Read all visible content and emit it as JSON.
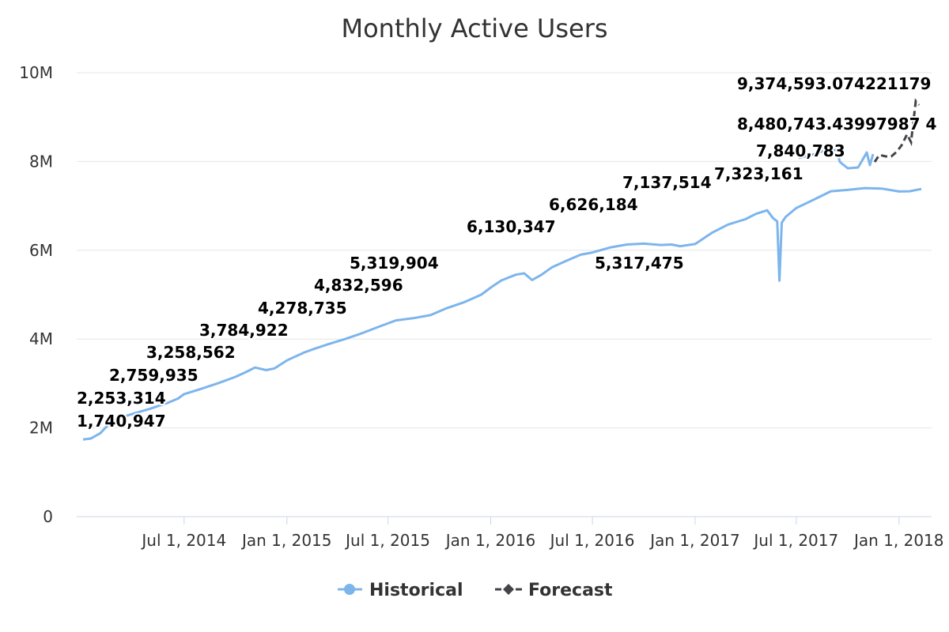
{
  "chart_data": {
    "type": "line",
    "title": "Monthly Active Users",
    "y_axis": {
      "min": 0,
      "max": 10000000,
      "ticks": [
        0,
        2000000,
        4000000,
        6000000,
        8000000,
        10000000
      ],
      "tick_labels": [
        "0",
        "2M",
        "4M",
        "6M",
        "8M",
        "10M"
      ],
      "grid": true
    },
    "x_axis": {
      "min": "2014-01-01",
      "max": "2018-02-10",
      "ticks": [
        "2014-07-01",
        "2015-01-01",
        "2015-07-01",
        "2016-01-01",
        "2016-07-01",
        "2017-01-01",
        "2017-07-01",
        "2018-01-01"
      ],
      "tick_labels": [
        "Jul 1, 2014",
        "Jan 1, 2015",
        "Jul 1, 2015",
        "Jan 1, 2016",
        "Jul 1, 2016",
        "Jan 1, 2017",
        "Jul 1, 2017",
        "Jan 1, 2018"
      ]
    },
    "legend_position": "bottom-center",
    "series": [
      {
        "name": "Historical",
        "color": "#7cb5ec",
        "points": [
          [
            "2014-01-01",
            1740947
          ],
          [
            "2014-01-15",
            1760000
          ],
          [
            "2014-02-01",
            1880000
          ],
          [
            "2014-02-15",
            2070000
          ],
          [
            "2014-03-01",
            2200000
          ],
          [
            "2014-03-15",
            2253314
          ],
          [
            "2014-04-01",
            2320000
          ],
          [
            "2014-05-01",
            2430000
          ],
          [
            "2014-06-01",
            2560000
          ],
          [
            "2014-06-20",
            2660000
          ],
          [
            "2014-07-01",
            2759935
          ],
          [
            "2014-08-01",
            2880000
          ],
          [
            "2014-09-01",
            3010000
          ],
          [
            "2014-10-01",
            3150000
          ],
          [
            "2014-10-20",
            3258562
          ],
          [
            "2014-11-05",
            3360000
          ],
          [
            "2014-11-25",
            3300000
          ],
          [
            "2014-12-10",
            3340000
          ],
          [
            "2015-01-01",
            3520000
          ],
          [
            "2015-02-01",
            3700000
          ],
          [
            "2015-02-20",
            3784922
          ],
          [
            "2015-03-15",
            3880000
          ],
          [
            "2015-04-15",
            4000000
          ],
          [
            "2015-05-15",
            4130000
          ],
          [
            "2015-06-15",
            4278735
          ],
          [
            "2015-07-15",
            4420000
          ],
          [
            "2015-08-15",
            4470000
          ],
          [
            "2015-09-15",
            4540000
          ],
          [
            "2015-10-15",
            4700000
          ],
          [
            "2015-11-15",
            4832596
          ],
          [
            "2015-12-15",
            5000000
          ],
          [
            "2016-01-01",
            5160000
          ],
          [
            "2016-01-20",
            5319904
          ],
          [
            "2016-02-15",
            5450000
          ],
          [
            "2016-03-01",
            5480000
          ],
          [
            "2016-03-15",
            5330000
          ],
          [
            "2016-04-01",
            5450000
          ],
          [
            "2016-04-20",
            5620000
          ],
          [
            "2016-05-15",
            5760000
          ],
          [
            "2016-06-10",
            5900000
          ],
          [
            "2016-07-01",
            5950000
          ],
          [
            "2016-08-01",
            6060000
          ],
          [
            "2016-09-01",
            6130347
          ],
          [
            "2016-10-01",
            6150000
          ],
          [
            "2016-11-01",
            6120000
          ],
          [
            "2016-11-20",
            6130000
          ],
          [
            "2016-12-05",
            6090000
          ],
          [
            "2017-01-01",
            6140000
          ],
          [
            "2017-02-01",
            6400000
          ],
          [
            "2017-03-01",
            6580000
          ],
          [
            "2017-04-01",
            6700000
          ],
          [
            "2017-04-20",
            6820000
          ],
          [
            "2017-05-10",
            6900000
          ],
          [
            "2017-05-20",
            6730000
          ],
          [
            "2017-05-28",
            6650000
          ],
          [
            "2017-06-01",
            5317475
          ],
          [
            "2017-06-05",
            6620000
          ],
          [
            "2017-06-12",
            6750000
          ],
          [
            "2017-07-01",
            6950000
          ],
          [
            "2017-08-01",
            7137514
          ],
          [
            "2017-09-01",
            7330000
          ],
          [
            "2017-10-01",
            7360000
          ],
          [
            "2017-11-01",
            7400000
          ],
          [
            "2017-12-01",
            7390000
          ],
          [
            "2018-01-01",
            7323161
          ],
          [
            "2018-01-20",
            7330000
          ],
          [
            "2018-02-10",
            7380000
          ]
        ]
      },
      {
        "name": "Forecast",
        "color": "#434348",
        "points": []
      }
    ],
    "annotations": [
      "1,740,947",
      "2,253,314",
      "2,759,935",
      "3,258,562",
      "3,784,922",
      "4,278,735",
      "4,832,596",
      "5,319,904",
      "6,130,347",
      "6,626,184",
      "5,317,475",
      "7,137,514",
      "7,323,161",
      "7,840,783",
      "8,480,743.43997987 4",
      "9,374,593.074221179"
    ]
  },
  "plot": {
    "x_min": "2014-01-01",
    "x_max": "2018-02-10"
  }
}
